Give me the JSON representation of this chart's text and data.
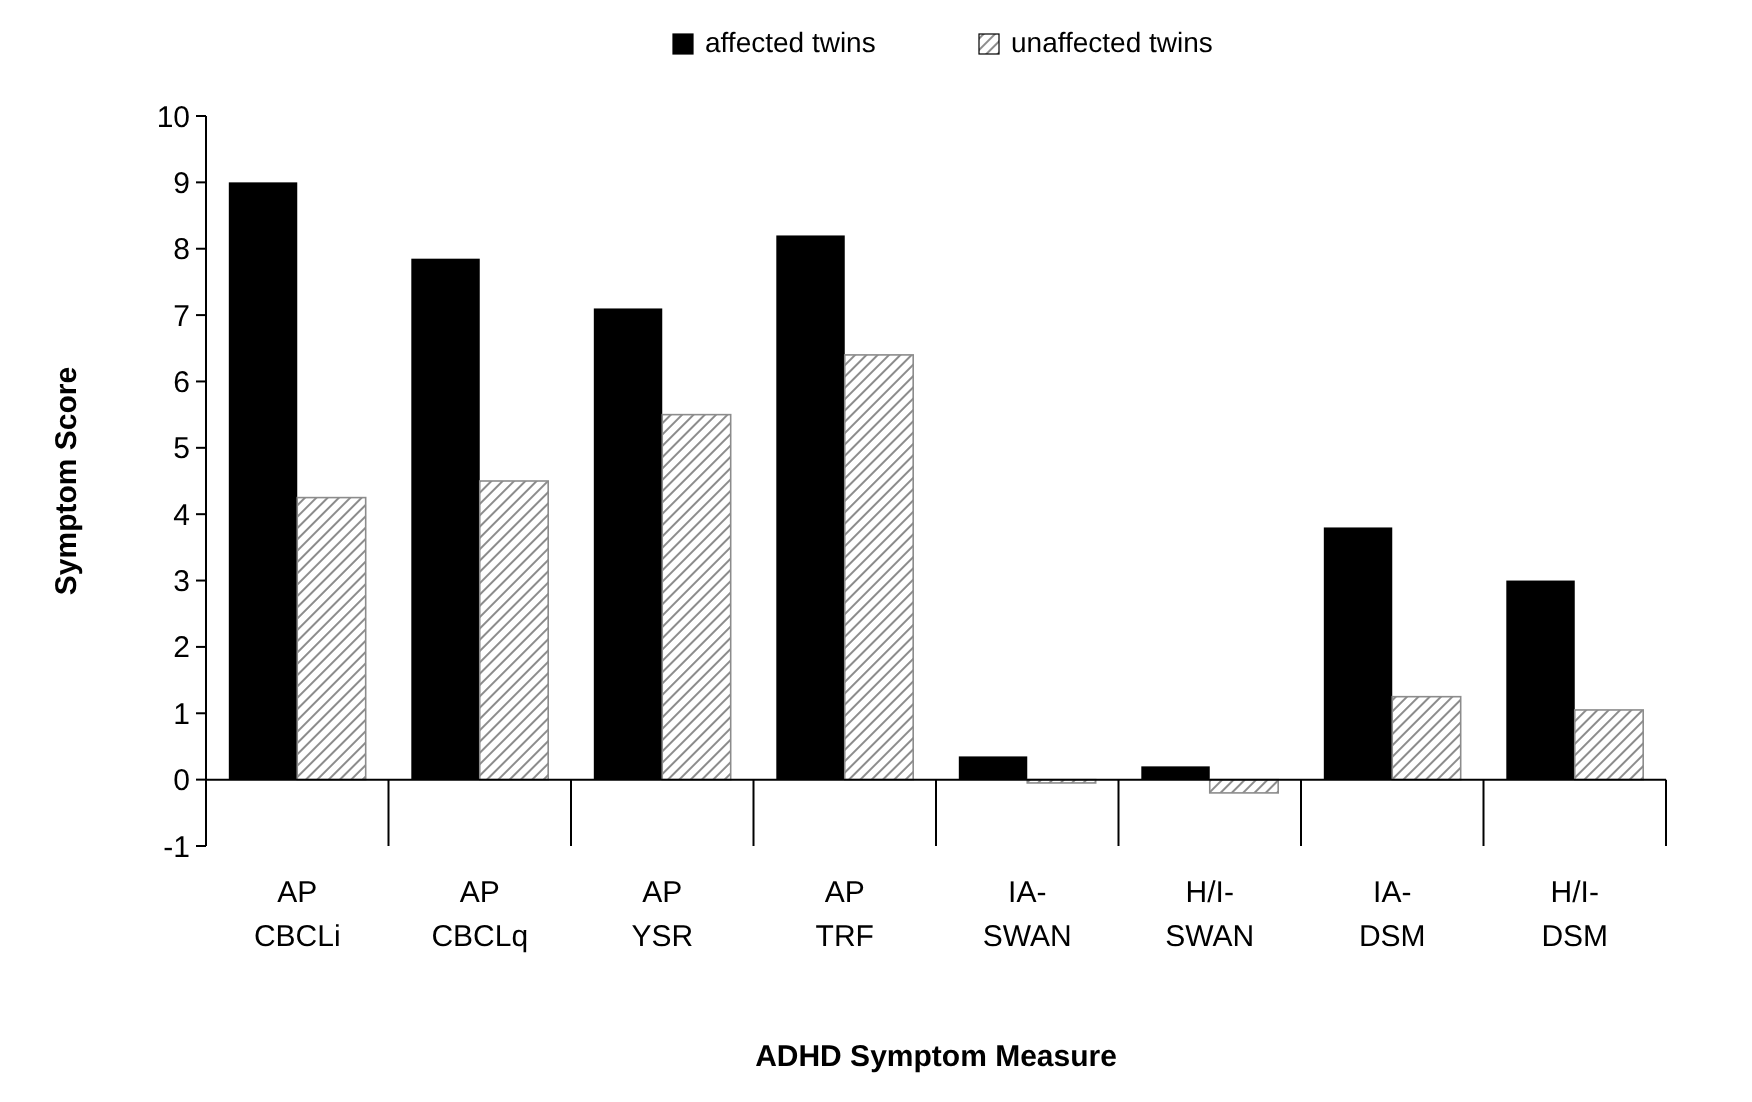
{
  "chart_data": {
    "type": "bar",
    "xlabel": "ADHD Symptom Measure",
    "ylabel": "Symptom Score",
    "categories": [
      "AP\nCBCLi",
      "AP\nCBCLq",
      "AP\nYSR",
      "AP\nTRF",
      "IA-\nSWAN",
      "H/I-\nSWAN",
      "IA-\nDSM",
      "H/I-\nDSM"
    ],
    "series": [
      {
        "name": "affected twins",
        "color": "#000000",
        "values": [
          9.0,
          7.85,
          7.1,
          8.2,
          0.35,
          0.2,
          3.8,
          3.0
        ]
      },
      {
        "name": "unaffected twins",
        "color": "#8c8c8c",
        "values": [
          4.25,
          4.5,
          5.5,
          6.4,
          -0.05,
          -0.2,
          1.25,
          1.05
        ]
      }
    ],
    "ylim": [
      -1,
      10
    ],
    "yticks": [
      -1,
      0,
      1,
      2,
      3,
      4,
      5,
      6,
      7,
      8,
      9,
      10
    ],
    "legend": "top"
  }
}
